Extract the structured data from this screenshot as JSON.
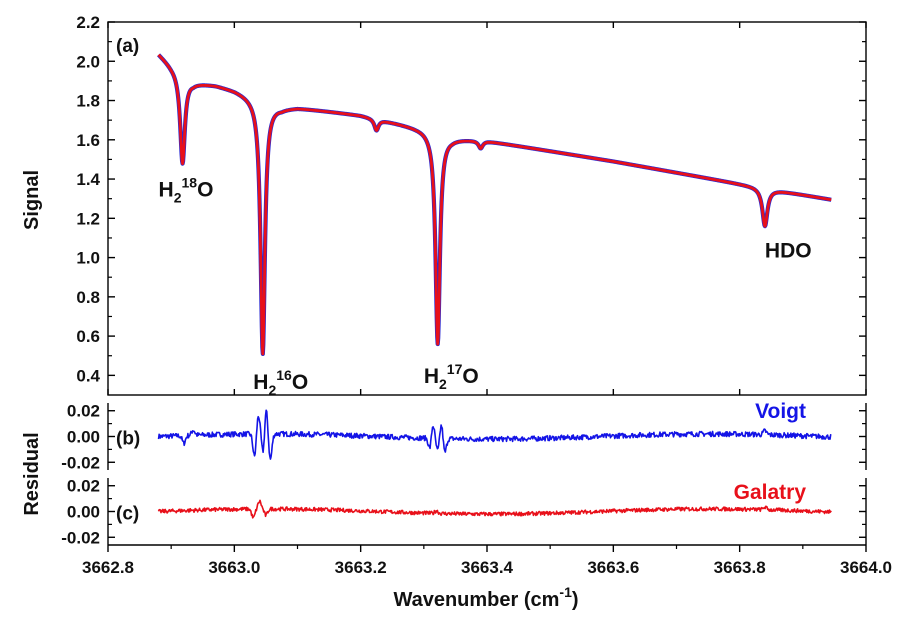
{
  "colors": {
    "fit": "#e8101a",
    "voigt": "#1414e6",
    "galatry": "#e8101a",
    "text": "#111111"
  },
  "chart_data": [
    {
      "id": "a",
      "type": "line",
      "panel_label": "(a)",
      "ylabel": "Signal",
      "xlim": [
        3662.8,
        3664.0
      ],
      "ylim": [
        0.3,
        2.2
      ],
      "yticks": [
        0.4,
        0.6,
        0.8,
        1.0,
        1.2,
        1.4,
        1.6,
        1.8,
        2.0,
        2.2
      ],
      "ytick_labels": [
        "0.4",
        "0.6",
        "0.8",
        "1.0",
        "1.2",
        "1.4",
        "1.6",
        "1.8",
        "2.0",
        "2.2"
      ],
      "baseline_anchors": [
        [
          3662.88,
          2.04
        ],
        [
          3662.9,
          1.98
        ],
        [
          3662.935,
          1.895
        ],
        [
          3662.97,
          1.88
        ],
        [
          3663.0,
          1.855
        ],
        [
          3663.03,
          1.82
        ],
        [
          3663.075,
          1.765
        ],
        [
          3663.1,
          1.765
        ],
        [
          3663.2,
          1.725
        ],
        [
          3663.3,
          1.655
        ],
        [
          3663.345,
          1.61
        ],
        [
          3663.4,
          1.595
        ],
        [
          3663.6,
          1.49
        ],
        [
          3663.8,
          1.375
        ],
        [
          3663.945,
          1.295
        ]
      ],
      "peaks": [
        {
          "species": "H2 18O",
          "x": 3662.918,
          "min": 1.48
        },
        {
          "species": "H2 16O",
          "x": 3663.045,
          "min": 0.51
        },
        {
          "species": "",
          "x": 3663.225,
          "min": 1.65
        },
        {
          "species": "H2 17O",
          "x": 3663.322,
          "min": 0.56
        },
        {
          "species": "",
          "x": 3663.39,
          "min": 1.56
        },
        {
          "species": "HDO",
          "x": 3663.84,
          "min": 1.16
        }
      ],
      "annotations": [
        {
          "base": "H",
          "sub": "2",
          "sup": "18",
          "tail": "O",
          "x": 3662.88,
          "y": 1.31
        },
        {
          "base": "H",
          "sub": "2",
          "sup": "16",
          "tail": "O",
          "x": 3663.03,
          "y": 0.33
        },
        {
          "base": "H",
          "sub": "2",
          "sup": "17",
          "tail": "O",
          "x": 3663.3,
          "y": 0.36
        },
        {
          "base": "HDO",
          "sub": "",
          "sup": "",
          "tail": "",
          "x": 3663.84,
          "y": 1.0
        }
      ]
    },
    {
      "id": "b",
      "type": "line",
      "panel_label": "(b)",
      "series_name": "Voigt",
      "xlim": [
        3662.8,
        3664.0
      ],
      "ylim": [
        -0.026,
        0.026
      ],
      "yticks": [
        0.02,
        0.0,
        -0.02
      ],
      "ytick_labels": [
        "0.02",
        "0.00",
        "-0.02"
      ]
    },
    {
      "id": "c",
      "type": "line",
      "panel_label": "(c)",
      "series_name": "Galatry",
      "xlim": [
        3662.8,
        3664.0
      ],
      "ylim": [
        -0.026,
        0.026
      ],
      "yticks": [
        0.02,
        0.0,
        -0.02
      ],
      "ytick_labels": [
        "0.02",
        "0.00",
        "-0.02"
      ],
      "xticks": [
        3662.8,
        3663.0,
        3663.2,
        3663.4,
        3663.6,
        3663.8,
        3664.0
      ],
      "xtick_labels": [
        "3662.8",
        "3663.0",
        "3663.2",
        "3663.4",
        "3663.6",
        "3663.8",
        "3664.0"
      ]
    }
  ],
  "residual_ylabel": "Residual",
  "xlabel_main": "Wavenumber (cm",
  "xlabel_sup": "-1",
  "xlabel_tail": ")",
  "residual_x_range": [
    3662.88,
    3663.945
  ],
  "voigt_features": [
    {
      "x": 3662.92,
      "a": -0.006
    },
    {
      "x": 3662.935,
      "a": 0.004
    },
    {
      "x": 3663.032,
      "a": -0.018
    },
    {
      "x": 3663.038,
      "a": 0.015
    },
    {
      "x": 3663.046,
      "a": -0.018
    },
    {
      "x": 3663.05,
      "a": 0.022
    },
    {
      "x": 3663.057,
      "a": -0.02
    },
    {
      "x": 3663.31,
      "a": -0.01
    },
    {
      "x": 3663.314,
      "a": 0.012
    },
    {
      "x": 3663.322,
      "a": -0.01
    },
    {
      "x": 3663.328,
      "a": 0.012
    },
    {
      "x": 3663.333,
      "a": -0.012
    },
    {
      "x": 3663.84,
      "a": 0.003
    }
  ],
  "galatry_features": [
    {
      "x": 3663.03,
      "a": -0.007
    },
    {
      "x": 3663.04,
      "a": 0.006
    },
    {
      "x": 3663.05,
      "a": -0.005
    },
    {
      "x": 3663.32,
      "a": 0.002
    },
    {
      "x": 3663.84,
      "a": 0.002
    }
  ]
}
